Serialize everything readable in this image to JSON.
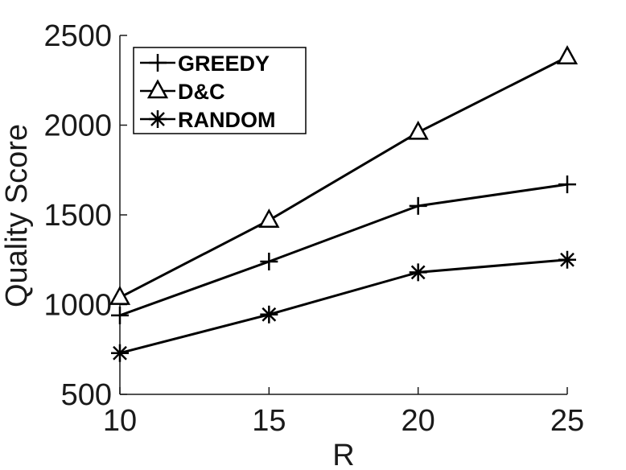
{
  "chart_data": {
    "type": "line",
    "xlabel": "R",
    "ylabel": "Quality Score",
    "x": [
      10,
      15,
      20,
      25
    ],
    "xlim": [
      10,
      25
    ],
    "ylim": [
      500,
      2500
    ],
    "xticks": [
      "10",
      "15",
      "20",
      "25"
    ],
    "yticks": [
      "500",
      "1000",
      "1500",
      "2000",
      "2500"
    ],
    "legend_position": "top-left",
    "grid": false,
    "series": [
      {
        "name": "GREEDY",
        "marker": "plus",
        "values": [
          940,
          1240,
          1550,
          1670
        ]
      },
      {
        "name": "D&C",
        "marker": "triangle",
        "values": [
          1040,
          1470,
          1960,
          2380
        ]
      },
      {
        "name": "RANDOM",
        "marker": "asterisk",
        "values": [
          730,
          945,
          1180,
          1250
        ]
      }
    ]
  }
}
